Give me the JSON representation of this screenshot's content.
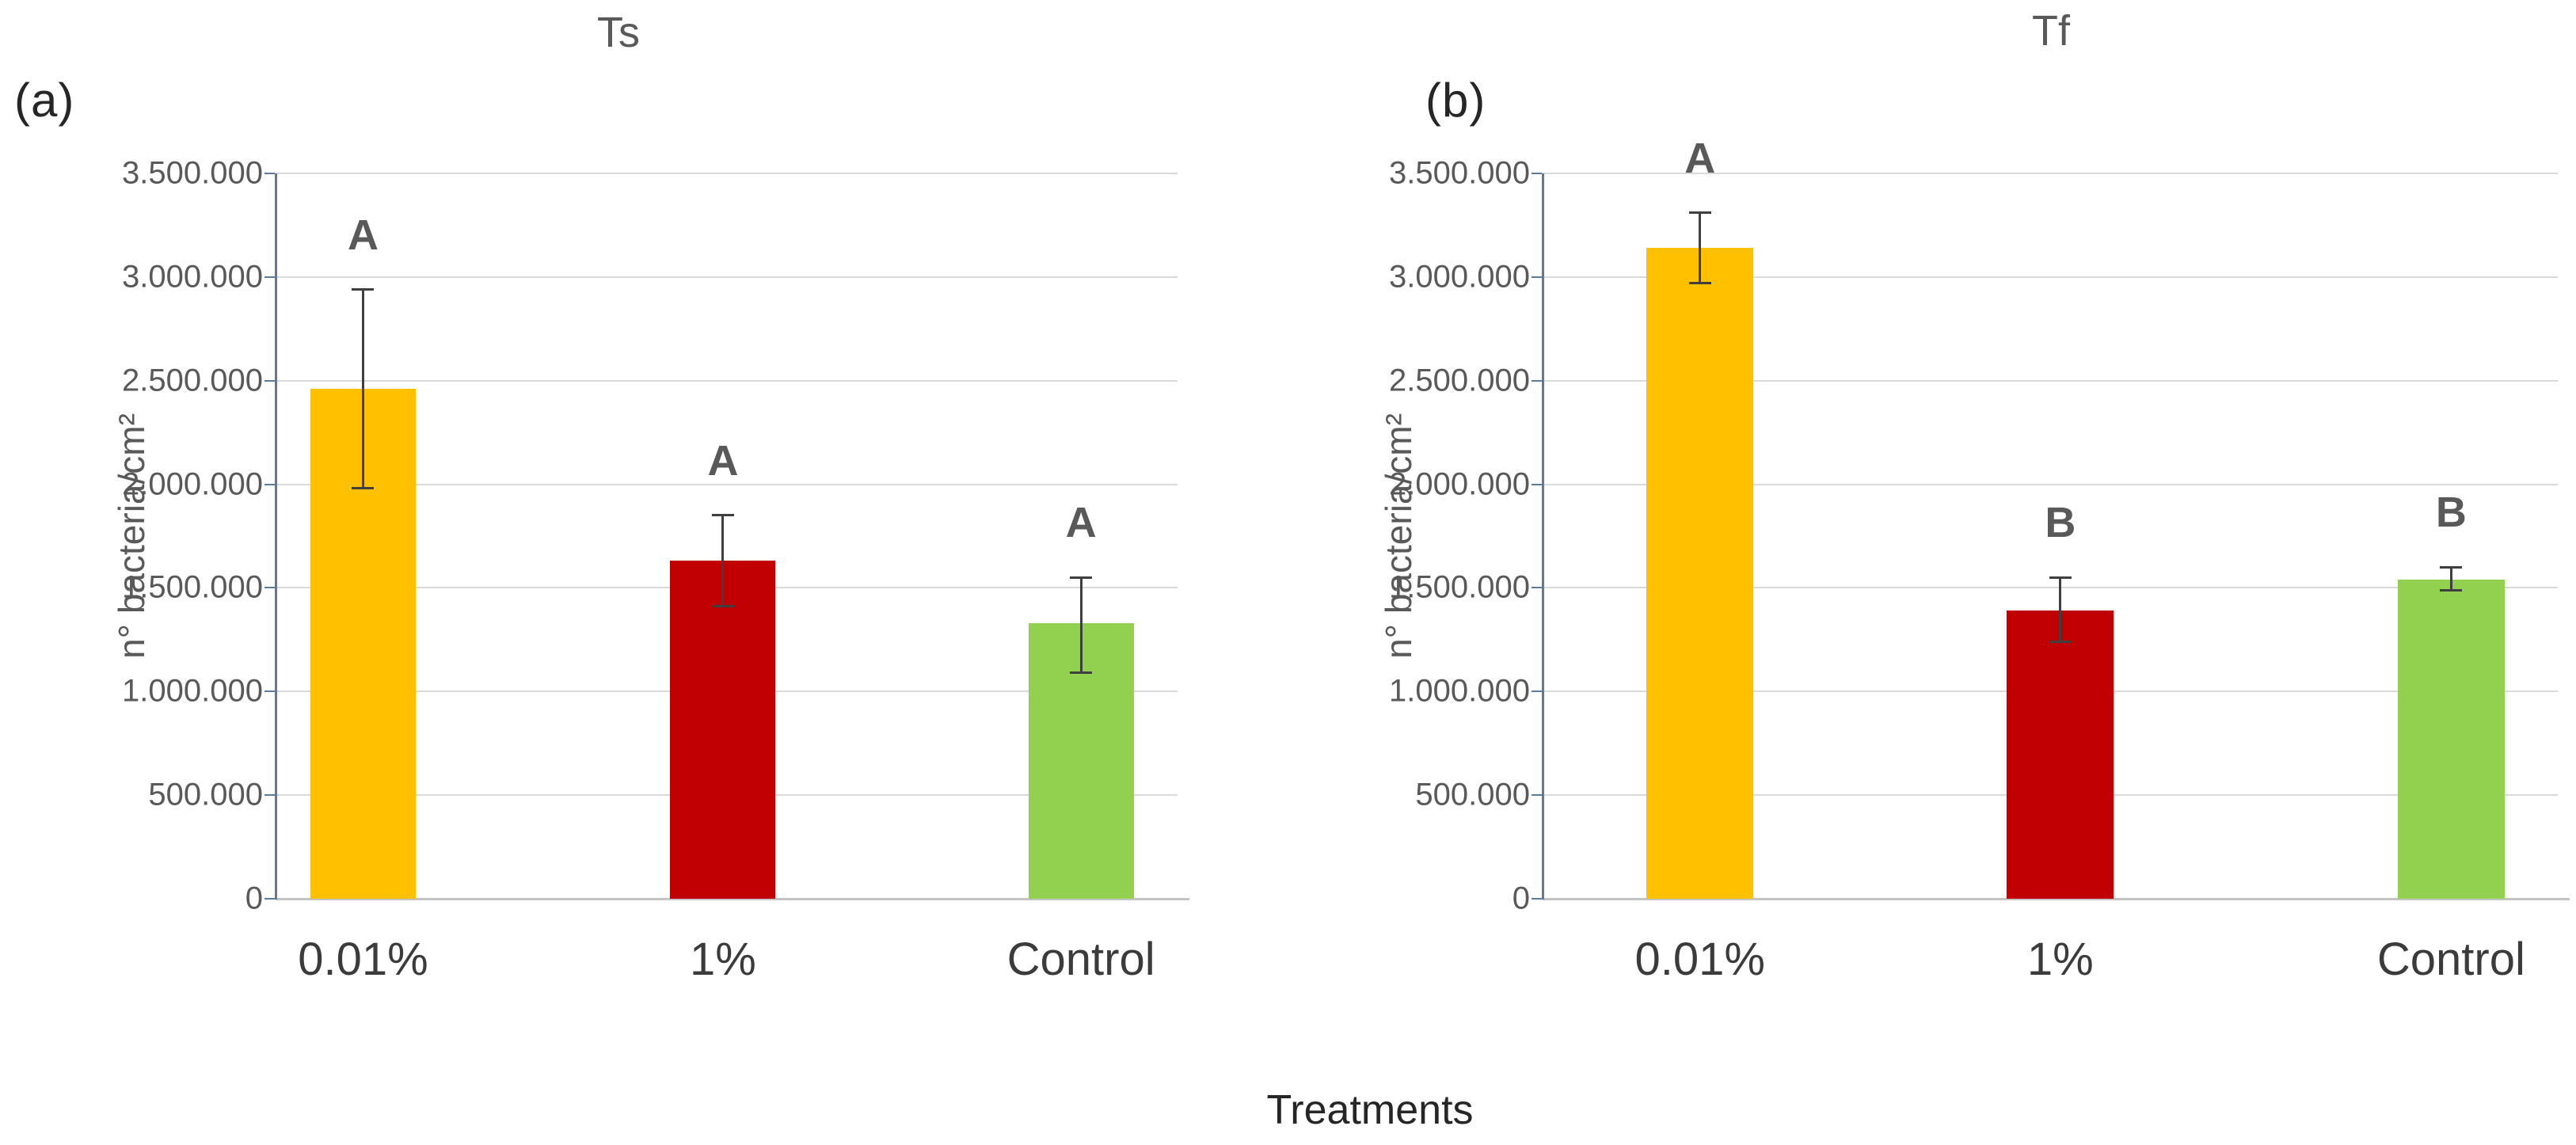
{
  "figure": {
    "panel_a_label": "(a)",
    "panel_b_label": "(b)",
    "shared_xlabel": "Treatments"
  },
  "colors": {
    "bar_yellow": "#FFC000",
    "bar_red": "#C00000",
    "bar_green": "#92D050",
    "axis_line": "#5b7b9a",
    "gridline": "#d9d9d9",
    "tick_text": "#595959",
    "letter_text": "#595959"
  },
  "chart_data": [
    {
      "type": "bar",
      "panel": "a",
      "title": "Ts",
      "ylabel": "n° bacteria/cm²",
      "xlabel": "Treatments",
      "categories": [
        "0.01%",
        "1%",
        "Control"
      ],
      "values": [
        2460000,
        1630000,
        1330000
      ],
      "error_low": [
        1980000,
        1410000,
        1090000
      ],
      "error_high": [
        2940000,
        1850000,
        1550000
      ],
      "sig_letters": [
        "A",
        "A",
        "A"
      ],
      "bar_colors": [
        "#FFC000",
        "#C00000",
        "#92D050"
      ],
      "ylim": [
        0,
        3500000
      ],
      "ytick_step": 500000,
      "ytick_labels": [
        "0",
        "500.000",
        "1.000.000",
        "1.500.000",
        "2.000.000",
        "2.500.000",
        "3.000.000",
        "3.500.000"
      ],
      "grid": true,
      "legend": "none"
    },
    {
      "type": "bar",
      "panel": "b",
      "title": "Tf",
      "ylabel": "n° bacteria/cm²",
      "xlabel": "Treatments",
      "categories": [
        "0.01%",
        "1%",
        "Control"
      ],
      "values": [
        3140000,
        1390000,
        1540000
      ],
      "error_low": [
        2970000,
        1240000,
        1490000
      ],
      "error_high": [
        3310000,
        1550000,
        1600000
      ],
      "sig_letters": [
        "A",
        "B",
        "B"
      ],
      "bar_colors": [
        "#FFC000",
        "#C00000",
        "#92D050"
      ],
      "ylim": [
        0,
        3500000
      ],
      "ytick_step": 500000,
      "ytick_labels": [
        "0",
        "500.000",
        "1.000.000",
        "1.500.000",
        "2.000.000",
        "2.500.000",
        "3.000.000",
        "3.500.000"
      ],
      "grid": true,
      "legend": "none"
    }
  ]
}
